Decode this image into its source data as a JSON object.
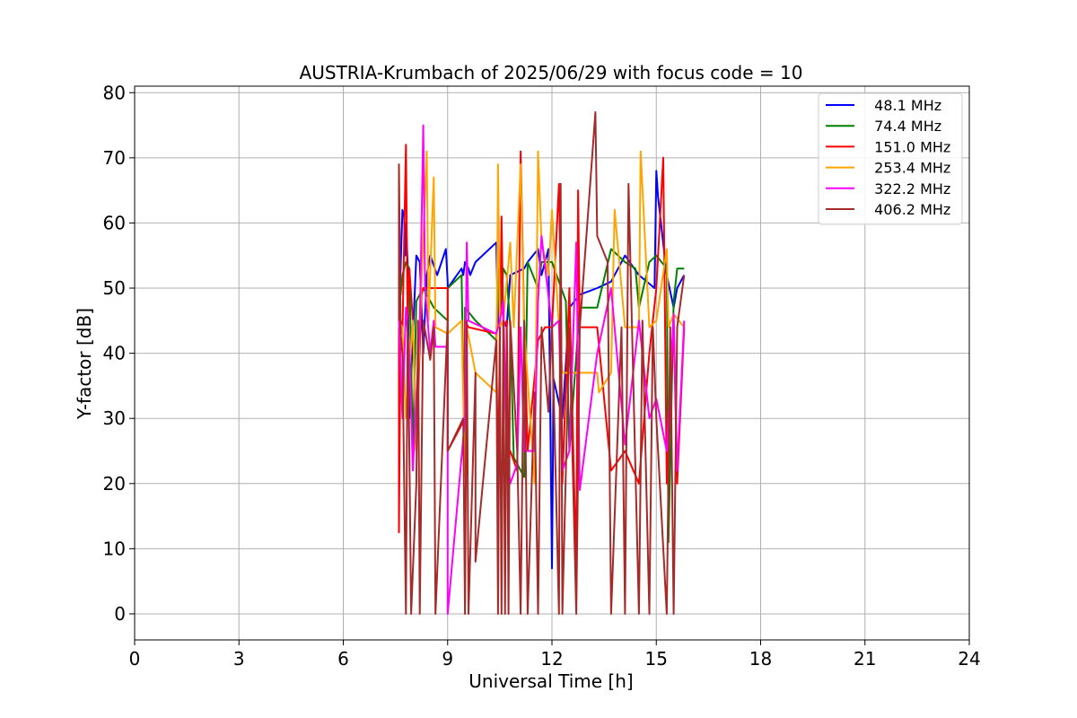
{
  "chart_data": {
    "type": "line",
    "title": "AUSTRIA-Krumbach of 2025/06/29 with focus code = 10",
    "xlabel": "Universal Time [h]",
    "ylabel": "Y-factor [dB]",
    "xlim": [
      0,
      24
    ],
    "ylim": [
      -4,
      81
    ],
    "xticks": [
      0,
      3,
      6,
      9,
      12,
      15,
      18,
      21,
      24
    ],
    "yticks": [
      0,
      10,
      20,
      30,
      40,
      50,
      60,
      70,
      80
    ],
    "grid": true,
    "legend_position": "top-right",
    "series": [
      {
        "name": "  48.1 MHz",
        "color": "#0000ff",
        "x": [
          7.6,
          7.6,
          7.7,
          7.75,
          7.78,
          7.8,
          7.85,
          7.9,
          8.1,
          8.2,
          8.3,
          8.4,
          8.5,
          8.7,
          8.95,
          9.0,
          9.0,
          9.4,
          9.45,
          9.5,
          9.6,
          9.65,
          9.8,
          10.4,
          10.45,
          10.5,
          10.55,
          10.6,
          10.7,
          10.8,
          11.2,
          11.3,
          11.6,
          11.7,
          11.9,
          12.0,
          12.05,
          12.3,
          12.5,
          12.8,
          13.3,
          13.7,
          14.1,
          14.5,
          14.95,
          15.0,
          15.05,
          15.3,
          15.5,
          15.6,
          15.8
        ],
        "values": [
          55,
          45,
          62,
          61,
          55,
          60,
          54,
          30,
          55,
          54,
          40,
          52,
          55,
          52,
          56,
          51,
          50,
          53,
          52,
          54,
          53,
          52,
          54,
          57,
          44,
          53,
          52,
          45,
          44,
          52,
          53,
          54,
          56,
          52,
          56,
          7,
          36,
          30,
          47,
          49,
          50,
          51,
          55,
          52,
          50,
          68,
          64,
          52,
          47,
          50,
          52
        ]
      },
      {
        "name": "  74.4 MHz",
        "color": "#008000",
        "x": [
          7.6,
          7.65,
          7.7,
          7.8,
          7.9,
          8.0,
          8.1,
          8.3,
          8.5,
          8.6,
          9.0,
          9.0,
          9.4,
          9.5,
          9.5,
          9.8,
          10.4,
          10.45,
          10.5,
          10.6,
          10.7,
          10.8,
          10.9,
          11.2,
          11.3,
          11.6,
          11.7,
          12.0,
          12.4,
          12.5,
          12.8,
          13.3,
          13.7,
          14.1,
          14.4,
          14.5,
          14.8,
          15.0,
          15.3,
          15.35,
          15.5,
          15.6,
          15.8
        ],
        "values": [
          53,
          49,
          52,
          54,
          53,
          25,
          48,
          50,
          48,
          47,
          45,
          50,
          52,
          21,
          47,
          45,
          42,
          53,
          45,
          53,
          52,
          44,
          24,
          21,
          54,
          50,
          54,
          54,
          48,
          25,
          47,
          47,
          56,
          54,
          53,
          47,
          54,
          55,
          53,
          11,
          48,
          53,
          53
        ]
      },
      {
        "name": "  151.0 MHz",
        "color": "#ff0000",
        "x": [
          7.6,
          7.6,
          7.65,
          7.7,
          7.8,
          7.85,
          7.9,
          8.0,
          8.1,
          8.25,
          8.3,
          8.5,
          8.6,
          9.0,
          9.0,
          9.5,
          9.5,
          9.6,
          10.4,
          10.45,
          10.55,
          10.6,
          10.7,
          10.75,
          10.8,
          11.0,
          11.1,
          11.2,
          11.3,
          11.6,
          11.8,
          12.0,
          12.2,
          12.25,
          12.3,
          12.5,
          12.7,
          12.75,
          12.8,
          13.3,
          13.7,
          14.1,
          14.5,
          14.8,
          15.0,
          15.2,
          15.25,
          15.3,
          15.5,
          15.6,
          15.8
        ],
        "values": [
          44,
          12.5,
          45,
          43,
          72,
          45,
          53,
          45,
          25,
          49,
          50,
          50,
          50,
          50,
          25,
          30,
          45,
          44,
          43,
          20,
          61,
          44,
          45,
          24,
          25,
          22,
          71,
          45,
          25,
          42,
          44,
          44,
          66,
          50,
          20,
          50,
          6.5,
          65,
          44,
          44,
          22,
          25,
          20,
          40,
          50,
          70,
          46,
          20,
          45,
          20,
          44
        ]
      },
      {
        "name": "  253.4 MHz",
        "color": "#ffa500",
        "x": [
          7.6,
          7.7,
          7.8,
          8.0,
          8.1,
          8.2,
          8.4,
          8.45,
          8.6,
          8.65,
          9.0,
          9.4,
          9.5,
          9.55,
          9.8,
          10.4,
          10.45,
          10.5,
          10.6,
          10.8,
          10.9,
          11.1,
          11.2,
          11.5,
          11.6,
          11.7,
          11.9,
          12.0,
          12.2,
          12.3,
          12.8,
          13.3,
          13.35,
          13.7,
          13.8,
          14.1,
          14.5,
          14.55,
          14.8,
          15.0,
          15.3,
          15.35,
          15.5,
          15.8
        ],
        "values": [
          45,
          44,
          30,
          45,
          25,
          44,
          71,
          45,
          67,
          44,
          43,
          45,
          21,
          44,
          37,
          34,
          69,
          44,
          45,
          57,
          44,
          69,
          44,
          20,
          71,
          57,
          52,
          62,
          44,
          37,
          37,
          37,
          34,
          37,
          62,
          44,
          44,
          71,
          44,
          45,
          56,
          44,
          46,
          44
        ]
      },
      {
        "name": "  322.2 MHz",
        "color": "#ff00ff",
        "x": [
          7.6,
          7.7,
          7.8,
          7.9,
          8.0,
          8.2,
          8.3,
          8.35,
          8.5,
          8.6,
          8.65,
          9.0,
          9.0,
          9.5,
          9.55,
          9.6,
          10.4,
          10.5,
          10.6,
          10.7,
          10.8,
          11.0,
          11.1,
          11.2,
          11.5,
          11.6,
          11.7,
          12.0,
          12.2,
          12.3,
          12.5,
          12.7,
          12.8,
          13.3,
          13.7,
          14.1,
          14.5,
          14.8,
          15.0,
          15.3,
          15.5,
          15.6,
          15.8
        ],
        "values": [
          45,
          30,
          47,
          40,
          22,
          44,
          75,
          50,
          40,
          45,
          41,
          41,
          0,
          30,
          57,
          45,
          43,
          45,
          48,
          25,
          20,
          23,
          44,
          25,
          25,
          48,
          58,
          44,
          45,
          22,
          25,
          57,
          19,
          40,
          50,
          26,
          45,
          30,
          33,
          25,
          46,
          22,
          45
        ]
      },
      {
        "name": "  406.2 MHz",
        "color": "#a52a2a",
        "x": [
          7.6,
          7.6,
          7.65,
          7.7,
          7.8,
          7.85,
          7.9,
          7.95,
          8.1,
          8.15,
          8.2,
          8.3,
          8.5,
          8.6,
          8.65,
          9.0,
          9.0,
          9.45,
          9.5,
          9.55,
          9.6,
          9.8,
          9.8,
          10.4,
          10.45,
          10.5,
          10.55,
          10.6,
          10.65,
          10.7,
          10.75,
          10.8,
          11.0,
          11.1,
          11.2,
          11.3,
          11.5,
          11.6,
          11.7,
          11.9,
          12.0,
          12.2,
          12.25,
          12.3,
          12.5,
          12.7,
          12.8,
          13.25,
          13.3,
          13.6,
          13.7,
          14.0,
          14.1,
          14.2,
          14.5,
          14.6,
          14.8,
          14.9,
          15.0,
          15.3,
          15.4,
          15.5,
          15.6,
          15.8
        ],
        "values": [
          45,
          69,
          43,
          40,
          0,
          45,
          25,
          0,
          20,
          45,
          0,
          45,
          39,
          44,
          0,
          45,
          25,
          30,
          0,
          45,
          0,
          37,
          8,
          42,
          0,
          44,
          0,
          45,
          0,
          44,
          0,
          45,
          25,
          0,
          45,
          0,
          34,
          0,
          44,
          31,
          45,
          0,
          66,
          0,
          44,
          0,
          44,
          77,
          58,
          54,
          0,
          44,
          0,
          66,
          0,
          45,
          0,
          44,
          30,
          0,
          44,
          0,
          44,
          52
        ]
      }
    ]
  }
}
